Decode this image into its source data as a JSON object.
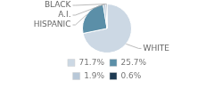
{
  "chart_data": {
    "type": "pie",
    "categories": [
      "WHITE",
      "HISPANIC",
      "A.I.",
      "BLACK"
    ],
    "values": [
      71.7,
      25.7,
      1.9,
      0.6
    ],
    "colors": [
      "#ccd8e4",
      "#5b8fa8",
      "#b8c8d8",
      "#1e3a52"
    ],
    "value_labels": [
      "71.7%",
      "25.7%",
      "1.9%",
      "0.6%"
    ],
    "legend": "bottom"
  }
}
